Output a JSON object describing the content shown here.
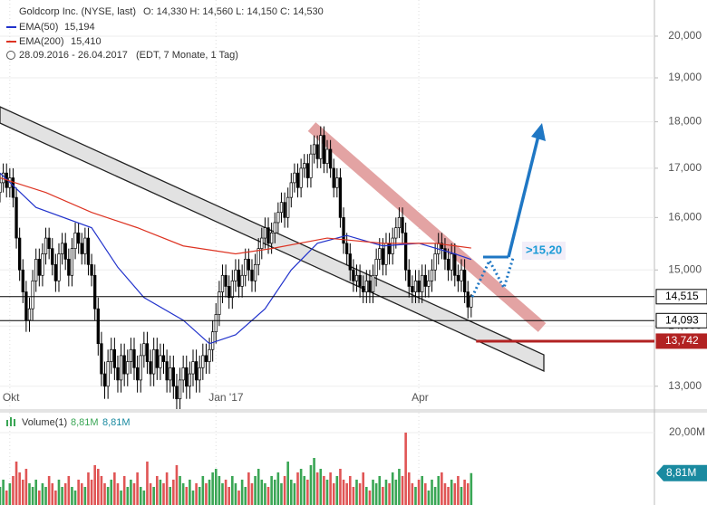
{
  "chart_data": {
    "type": "candlestick",
    "title": "Goldcorp Inc. (NYSE, last)",
    "ohlc_text": "O: 14,330  H: 14,560  L: 14,150  C: 14,530",
    "date_range": "28.09.2016 - 26.04.2017",
    "period": "(EDT, 7 Monate, 1 Tag)",
    "log_scale": true,
    "xlim": [
      0,
      200
    ],
    "xticks": [
      {
        "value": 3,
        "label": "Okt"
      },
      {
        "value": 66,
        "label": "Jan '17"
      },
      {
        "value": 128,
        "label": "Apr"
      }
    ],
    "ylim": [
      12.64,
      20.91
    ],
    "yticks": [
      {
        "value": 13,
        "label": "13,000"
      },
      {
        "value": 14,
        "label": "14,000"
      },
      {
        "value": 15,
        "label": "15,000"
      },
      {
        "value": 16,
        "label": "16,000"
      },
      {
        "value": 17,
        "label": "17,000"
      },
      {
        "value": 18,
        "label": "18,000"
      },
      {
        "value": 19,
        "label": "19,000"
      },
      {
        "value": 20,
        "label": "20,000"
      }
    ],
    "grid": true,
    "open": [
      16.5,
      16.7,
      16.9,
      16.6,
      16.8,
      16.4,
      15.6,
      15.0,
      14.6,
      14.1,
      14.3,
      14.8,
      15.2,
      14.9,
      15.3,
      15.6,
      15.4,
      15.1,
      14.8,
      15.3,
      15.5,
      15.2,
      14.9,
      15.4,
      15.7,
      15.5,
      15.3,
      15.6,
      15.1,
      14.9,
      14.3,
      13.7,
      13.2,
      13.0,
      13.4,
      13.6,
      13.3,
      13.1,
      13.5,
      13.2,
      13.4,
      13.6,
      13.3,
      13.1,
      13.5,
      13.7,
      13.4,
      13.2,
      13.6,
      13.3,
      13.5,
      13.4,
      13.1,
      13.3,
      13.0,
      12.8,
      13.1,
      13.3,
      13.0,
      13.2,
      13.4,
      13.1,
      13.3,
      13.5,
      13.4,
      13.6,
      13.9,
      14.2,
      14.6,
      14.9,
      14.7,
      14.5,
      14.8,
      15.0,
      14.7,
      14.9,
      15.2,
      15.0,
      14.8,
      15.1,
      15.4,
      15.6,
      15.8,
      15.5,
      15.7,
      15.9,
      16.1,
      16.3,
      16.0,
      16.4,
      16.7,
      16.9,
      16.6,
      17.0,
      17.1,
      16.8,
      17.3,
      17.5,
      17.2,
      17.7,
      17.1,
      17.4,
      17.0,
      16.6,
      16.8,
      16.0,
      15.5,
      15.3,
      15.0,
      14.8,
      14.9,
      14.7,
      14.6,
      14.8,
      14.6,
      14.9,
      15.2,
      15.4,
      15.1,
      15.5,
      15.3,
      15.6,
      15.8,
      16.0,
      15.7,
      15.0,
      14.7,
      14.6,
      14.8,
      14.6,
      14.9,
      14.7,
      14.8,
      15.0,
      15.3,
      15.5,
      15.4,
      15.2,
      15.0,
      15.3,
      14.9,
      14.8,
      15.0,
      14.6,
      14.33
    ],
    "high": [
      16.9,
      17.1,
      17.1,
      17.0,
      17.0,
      16.6,
      15.8,
      15.2,
      14.8,
      14.5,
      15.0,
      15.4,
      15.4,
      15.5,
      15.8,
      15.8,
      15.6,
      15.3,
      15.5,
      15.7,
      15.7,
      15.4,
      15.6,
      15.9,
      15.9,
      15.7,
      15.8,
      15.8,
      15.3,
      15.1,
      14.5,
      13.9,
      13.4,
      13.6,
      13.8,
      13.8,
      13.5,
      13.7,
      13.7,
      13.6,
      13.8,
      13.8,
      13.5,
      13.7,
      13.9,
      13.9,
      13.6,
      13.8,
      13.8,
      13.7,
      13.7,
      13.6,
      13.5,
      13.5,
      13.2,
      13.3,
      13.5,
      13.5,
      13.4,
      13.6,
      13.6,
      13.5,
      13.7,
      13.7,
      13.8,
      14.1,
      14.4,
      14.8,
      15.1,
      15.1,
      14.9,
      15.0,
      15.2,
      15.2,
      15.1,
      15.4,
      15.4,
      15.2,
      15.3,
      15.6,
      15.8,
      16.0,
      16.0,
      15.9,
      16.1,
      16.3,
      16.5,
      16.5,
      16.6,
      16.9,
      17.1,
      17.1,
      17.2,
      17.3,
      17.3,
      17.5,
      17.7,
      17.7,
      17.9,
      17.9,
      17.6,
      17.6,
      17.2,
      17.0,
      17.0,
      16.2,
      15.7,
      15.5,
      15.2,
      15.1,
      15.1,
      14.9,
      15.0,
      15.0,
      15.1,
      15.4,
      15.6,
      15.6,
      15.7,
      15.7,
      15.8,
      16.0,
      16.2,
      16.2,
      15.9,
      15.2,
      14.9,
      15.0,
      15.0,
      15.1,
      15.1,
      15.0,
      15.2,
      15.5,
      15.7,
      15.7,
      15.6,
      15.4,
      15.5,
      15.5,
      15.1,
      15.2,
      15.2,
      14.8,
      14.56
    ],
    "low": [
      16.3,
      16.5,
      16.4,
      16.4,
      16.2,
      15.4,
      14.8,
      14.4,
      13.9,
      13.9,
      14.1,
      14.6,
      14.7,
      14.7,
      15.1,
      15.2,
      14.9,
      14.6,
      14.6,
      15.1,
      15.0,
      14.7,
      14.7,
      15.2,
      15.3,
      15.1,
      15.1,
      14.9,
      14.7,
      14.1,
      13.5,
      13.0,
      12.8,
      12.8,
      13.2,
      13.1,
      12.9,
      12.9,
      13.0,
      13.0,
      13.2,
      13.1,
      12.9,
      12.9,
      13.3,
      13.2,
      13.0,
      13.0,
      13.1,
      13.1,
      13.2,
      12.9,
      12.9,
      12.8,
      12.6,
      12.6,
      12.9,
      12.8,
      12.8,
      13.0,
      12.9,
      12.9,
      13.1,
      13.2,
      13.2,
      13.4,
      13.7,
      14.0,
      14.4,
      14.5,
      14.3,
      14.3,
      14.6,
      14.5,
      14.5,
      14.7,
      14.8,
      14.6,
      14.6,
      14.9,
      15.2,
      15.4,
      15.3,
      15.3,
      15.5,
      15.7,
      15.9,
      15.8,
      15.8,
      16.2,
      16.5,
      16.4,
      16.4,
      16.8,
      16.6,
      16.6,
      17.1,
      17.0,
      17.0,
      16.9,
      16.9,
      16.8,
      16.4,
      16.4,
      15.8,
      15.3,
      15.1,
      14.8,
      14.6,
      14.6,
      14.5,
      14.4,
      14.4,
      14.4,
      14.4,
      14.7,
      15.0,
      14.9,
      14.9,
      15.1,
      15.1,
      15.4,
      15.6,
      15.5,
      14.8,
      14.5,
      14.4,
      14.4,
      14.4,
      14.4,
      14.5,
      14.5,
      14.6,
      14.8,
      15.1,
      15.2,
      15.0,
      14.8,
      14.8,
      14.7,
      14.6,
      14.6,
      14.4,
      14.13,
      14.15
    ],
    "close": [
      16.7,
      16.9,
      16.6,
      16.8,
      16.4,
      15.6,
      15.0,
      14.6,
      14.1,
      14.3,
      14.8,
      15.2,
      14.9,
      15.3,
      15.6,
      15.4,
      15.1,
      14.8,
      15.3,
      15.5,
      15.2,
      14.9,
      15.4,
      15.7,
      15.5,
      15.3,
      15.6,
      15.1,
      14.9,
      14.3,
      13.7,
      13.2,
      13.0,
      13.4,
      13.6,
      13.3,
      13.1,
      13.5,
      13.2,
      13.4,
      13.6,
      13.3,
      13.1,
      13.5,
      13.7,
      13.4,
      13.2,
      13.6,
      13.3,
      13.5,
      13.4,
      13.1,
      13.3,
      13.0,
      12.8,
      13.1,
      13.3,
      13.0,
      13.2,
      13.4,
      13.1,
      13.3,
      13.5,
      13.4,
      13.6,
      13.9,
      14.2,
      14.6,
      14.9,
      14.7,
      14.5,
      14.8,
      15.0,
      14.7,
      14.9,
      15.2,
      15.0,
      14.8,
      15.1,
      15.4,
      15.6,
      15.8,
      15.5,
      15.7,
      15.9,
      16.1,
      16.3,
      16.0,
      16.4,
      16.7,
      16.9,
      16.6,
      17.0,
      17.1,
      16.8,
      17.3,
      17.5,
      17.2,
      17.7,
      17.1,
      17.4,
      17.0,
      16.6,
      16.8,
      16.0,
      15.5,
      15.3,
      15.0,
      14.8,
      14.9,
      14.7,
      14.6,
      14.8,
      14.6,
      14.9,
      15.2,
      15.4,
      15.1,
      15.5,
      15.3,
      15.6,
      15.8,
      16.0,
      15.7,
      15.0,
      14.7,
      14.6,
      14.8,
      14.6,
      14.9,
      14.7,
      14.8,
      15.0,
      15.3,
      15.5,
      15.4,
      15.2,
      15.0,
      15.3,
      14.9,
      14.8,
      15.0,
      14.6,
      14.33,
      14.53
    ],
    "series": [
      {
        "name": "EMA(50)",
        "last_label": "15,194",
        "color": "#2233cc",
        "x": [
          0,
          11,
          28,
          36,
          44,
          56,
          64,
          72,
          81,
          89,
          97,
          106,
          117,
          128,
          139,
          144
        ],
        "values": [
          16.9,
          16.2,
          15.8,
          15.05,
          14.5,
          14.1,
          13.7,
          13.85,
          14.3,
          15.0,
          15.5,
          15.65,
          15.45,
          15.5,
          15.3,
          15.194
        ]
      },
      {
        "name": "EMA(200)",
        "last_label": "15,410",
        "color": "#dd3322",
        "x": [
          0,
          14,
          28,
          42,
          56,
          72,
          83,
          100,
          117,
          133,
          144
        ],
        "values": [
          16.8,
          16.5,
          16.1,
          15.8,
          15.45,
          15.3,
          15.4,
          15.6,
          15.5,
          15.5,
          15.41
        ]
      }
    ],
    "levels": [
      {
        "value": 14.515,
        "label": "14,515",
        "color": "#000000"
      },
      {
        "value": 14.093,
        "label": "14,093",
        "color": "#000000"
      },
      {
        "value": 13.742,
        "label": "13,742",
        "color": "#b22222"
      }
    ],
    "target_label": ">15,20",
    "volume": {
      "name": "Volume(1)",
      "last_label": "8,81M",
      "current_label": "8,81M",
      "ylim": [
        0,
        26.5
      ],
      "yticks": [
        {
          "value": 20,
          "label": "20,00M"
        }
      ],
      "up_color": "#3aa655",
      "down_color": "#e05555",
      "values": [
        5,
        7,
        4,
        6,
        8,
        12,
        9,
        7,
        10,
        6,
        5,
        7,
        4,
        6,
        5,
        8,
        6,
        4,
        7,
        5,
        6,
        8,
        5,
        4,
        7,
        6,
        5,
        9,
        7,
        11,
        10,
        8,
        6,
        5,
        7,
        9,
        6,
        4,
        8,
        5,
        7,
        6,
        9,
        5,
        4,
        12,
        6,
        5,
        8,
        7,
        6,
        9,
        5,
        7,
        11,
        8,
        6,
        5,
        7,
        4,
        6,
        5,
        8,
        6,
        7,
        9,
        10,
        8,
        6,
        7,
        5,
        8,
        6,
        4,
        7,
        5,
        9,
        6,
        8,
        10,
        7,
        6,
        5,
        8,
        7,
        9,
        6,
        8,
        12,
        7,
        6,
        9,
        10,
        8,
        7,
        11,
        13,
        9,
        10,
        8,
        7,
        9,
        6,
        8,
        10,
        7,
        6,
        8,
        5,
        7,
        6,
        9,
        5,
        4,
        7,
        6,
        8,
        5,
        7,
        6,
        9,
        7,
        10,
        8,
        20,
        9,
        6,
        5,
        7,
        8,
        6,
        4,
        7,
        5,
        8,
        9,
        6,
        5,
        7,
        6,
        8,
        5,
        7,
        6,
        8.81
      ]
    }
  }
}
